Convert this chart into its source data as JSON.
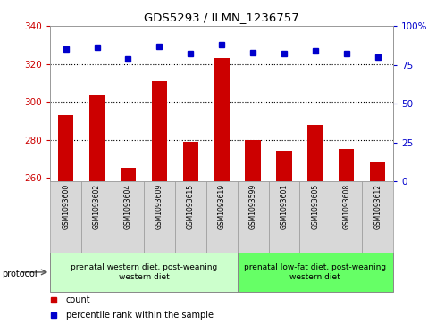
{
  "title": "GDS5293 / ILMN_1236757",
  "samples": [
    "GSM1093600",
    "GSM1093602",
    "GSM1093604",
    "GSM1093609",
    "GSM1093615",
    "GSM1093619",
    "GSM1093599",
    "GSM1093601",
    "GSM1093605",
    "GSM1093608",
    "GSM1093612"
  ],
  "counts": [
    293,
    304,
    265,
    311,
    279,
    323,
    280,
    274,
    288,
    275,
    268
  ],
  "percentiles": [
    85,
    86,
    79,
    87,
    82,
    88,
    83,
    82,
    84,
    82,
    80
  ],
  "ylim_left": [
    258,
    340
  ],
  "ylim_right": [
    0,
    100
  ],
  "yticks_left": [
    260,
    280,
    300,
    320,
    340
  ],
  "yticks_right": [
    0,
    25,
    50,
    75,
    100
  ],
  "bar_color": "#cc0000",
  "dot_color": "#0000cc",
  "bar_bottom": 258,
  "group1_label": "prenatal western diet, post-weaning\nwestern diet",
  "group2_label": "prenatal low-fat diet, post-weaning\nwestern diet",
  "group1_color": "#ccffcc",
  "group2_color": "#66ff66",
  "bg_color": "#d8d8d8",
  "legend_count_color": "#cc0000",
  "legend_dot_color": "#0000cc",
  "protocol_label": "protocol",
  "n_group1": 6,
  "n_group2": 5,
  "grid_lines": [
    280,
    300,
    320
  ]
}
